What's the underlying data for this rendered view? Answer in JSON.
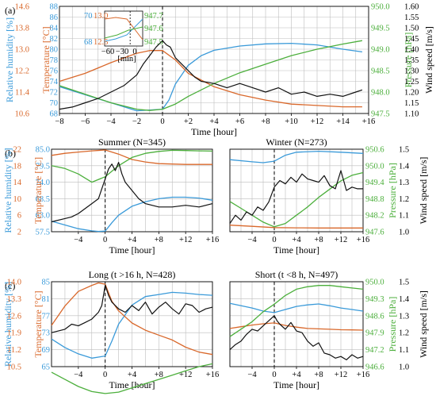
{
  "chart_data": [
    {
      "type": "line",
      "panel_label": "(a)",
      "title": "",
      "xlabel": "Time [hour]",
      "x_ticks": [
        "−8",
        "−6",
        "−4",
        "−2",
        "0",
        "+2",
        "+4",
        "+6",
        "+8",
        "+10",
        "+12",
        "+14",
        "+16"
      ],
      "xlim": [
        -8,
        16
      ],
      "axes": {
        "rh": {
          "label": "Relative humidity [%]",
          "lim": [
            68,
            88
          ],
          "ticks": [
            "68",
            "70",
            "72",
            "74",
            "76",
            "78",
            "80",
            "82",
            "84",
            "86",
            "88"
          ],
          "color": "#3a9ad9"
        },
        "temp": {
          "label": "Temperature [°C]",
          "lim": [
            10.6,
            14.6
          ],
          "ticks": [
            "10.6",
            "11.4",
            "12.2",
            "13.0",
            "13.8",
            "14.6"
          ],
          "color": "#d9682b"
        },
        "pres": {
          "label": "Pressure [hPa]",
          "lim": [
            947.5,
            950
          ],
          "ticks": [
            "947.5",
            "948.0",
            "948.5",
            "949.0",
            "949.5",
            "950.0"
          ],
          "color": "#4caf3c"
        },
        "wind": {
          "label": "Wind speed [m/s]",
          "lim": [
            1.1,
            1.6
          ],
          "ticks": [
            "1.10",
            "1.15",
            "1.20",
            "1.25",
            "1.30",
            "1.35",
            "1.40",
            "1.45",
            "1.50",
            "1.55",
            "1.60"
          ],
          "color": "#000000"
        }
      },
      "series": [
        {
          "axis": "rh",
          "x": [
            -8,
            -6,
            -4,
            -2,
            0,
            0.5,
            1,
            2,
            3,
            4,
            6,
            8,
            10,
            12,
            14,
            15.5
          ],
          "y": [
            73.0,
            71.5,
            70.0,
            68.5,
            68.8,
            70.5,
            73.5,
            77.0,
            78.8,
            79.8,
            80.6,
            81.0,
            81.1,
            80.8,
            80.0,
            79.5
          ]
        },
        {
          "axis": "temp",
          "x": [
            -8,
            -6,
            -4,
            -2,
            -1,
            0,
            1,
            2,
            4,
            6,
            8,
            10,
            12,
            14,
            15.5
          ],
          "y": [
            11.8,
            12.1,
            12.5,
            12.85,
            12.95,
            12.95,
            12.6,
            12.1,
            11.6,
            11.3,
            11.1,
            10.95,
            10.9,
            10.85,
            10.85
          ]
        },
        {
          "axis": "pres",
          "x": [
            -8,
            -6,
            -4,
            -2,
            -1,
            0,
            1,
            2,
            4,
            6,
            8,
            10,
            12,
            14,
            15.5
          ],
          "y": [
            948.15,
            947.95,
            947.75,
            947.6,
            947.57,
            947.6,
            947.72,
            947.9,
            948.2,
            948.45,
            948.65,
            948.85,
            949.0,
            949.12,
            949.2
          ]
        },
        {
          "axis": "wind",
          "x": [
            -8,
            -7,
            -6,
            -5,
            -4,
            -3,
            -2,
            -1.5,
            -1,
            -0.5,
            0,
            0.3,
            0.6,
            1,
            1.5,
            2,
            2.5,
            3,
            4,
            5,
            6,
            7,
            8,
            9,
            10,
            11,
            12,
            13,
            14,
            15,
            15.5
          ],
          "y": [
            1.12,
            1.13,
            1.15,
            1.17,
            1.2,
            1.23,
            1.28,
            1.33,
            1.37,
            1.41,
            1.44,
            1.42,
            1.41,
            1.36,
            1.33,
            1.3,
            1.27,
            1.25,
            1.24,
            1.22,
            1.24,
            1.22,
            1.2,
            1.22,
            1.19,
            1.2,
            1.18,
            1.19,
            1.18,
            1.2,
            1.21
          ]
        }
      ],
      "inset": {
        "x_ticks": [
          "−60",
          "−30",
          "0"
        ],
        "xlabel": "[min]",
        "rh_ticks": [
          "68",
          "70"
        ],
        "temp_ticks": [
          "12.5",
          "13.0"
        ],
        "pres_ticks": [
          "947.5",
          "947.6",
          "947.7"
        ]
      }
    },
    {
      "type": "line",
      "panel_label": "(b)",
      "title": "Summer (N=345)",
      "xlabel": "Time [hour]",
      "x_ticks": [
        "−4",
        "0",
        "+4",
        "+8",
        "+12",
        "+16"
      ],
      "xlim": [
        -8,
        16
      ],
      "axes": {
        "rh": {
          "label": "Relative humidity [%]",
          "lim": [
            57.5,
            85
          ],
          "ticks": [
            "57.5",
            "63.0",
            "68.5",
            "74.0",
            "79.5",
            "85.0"
          ]
        },
        "temp": {
          "label": "Temperature [°C]",
          "lim": [
            2,
            22
          ],
          "ticks": [
            "2",
            "6",
            "10",
            "14",
            "18",
            "22"
          ]
        }
      },
      "series": [
        {
          "axis": "rh",
          "x": [
            -8,
            -4,
            -2,
            -1,
            0,
            1,
            2,
            4,
            6,
            8,
            10,
            12,
            14,
            16
          ],
          "y": [
            61.0,
            58.5,
            57.8,
            57.6,
            57.7,
            60.5,
            63.0,
            66.0,
            67.5,
            68.5,
            69.0,
            69.0,
            68.7,
            68.0
          ]
        },
        {
          "axis": "temp",
          "x": [
            -8,
            -6,
            -4,
            -2,
            0,
            2,
            4,
            6,
            8,
            12,
            16
          ],
          "y": [
            20.5,
            21.0,
            21.3,
            21.6,
            21.8,
            20.8,
            19.5,
            18.9,
            18.5,
            18.3,
            18.3
          ]
        },
        {
          "axis": "pres",
          "x": [
            -8,
            -6,
            -4,
            -2,
            0,
            2,
            4,
            6,
            8,
            10,
            12,
            14,
            16
          ],
          "y": [
            949.9,
            949.8,
            949.6,
            949.3,
            949.5,
            949.9,
            950.2,
            950.35,
            950.42,
            950.46,
            950.45,
            950.44,
            950.43
          ]
        },
        {
          "axis": "wind",
          "x": [
            -8,
            -6,
            -5,
            -4,
            -3,
            -2,
            -1,
            -0.5,
            0,
            0.5,
            1,
            1.5,
            2,
            2.5,
            3,
            4,
            5,
            6,
            8,
            10,
            12,
            14,
            16
          ],
          "y": [
            1.06,
            1.08,
            1.09,
            1.11,
            1.14,
            1.17,
            1.2,
            1.26,
            1.32,
            1.38,
            1.41,
            1.37,
            1.42,
            1.35,
            1.3,
            1.25,
            1.2,
            1.17,
            1.15,
            1.15,
            1.16,
            1.15,
            1.17
          ]
        }
      ]
    },
    {
      "type": "line",
      "panel_label": "",
      "title": "Winter (N=273)",
      "xlabel": "Time [hour]",
      "x_ticks": [
        "−4",
        "0",
        "+4",
        "+8",
        "+12",
        "+16"
      ],
      "xlim": [
        -8,
        16
      ],
      "axes": {
        "pres": {
          "label": "Pressure [hPa]",
          "lim": [
            947.6,
            950.6
          ],
          "ticks": [
            "947.6",
            "948.2",
            "948.8",
            "949.4",
            "950.0",
            "950.6"
          ]
        },
        "wind": {
          "label": "Wind speed [m/s]",
          "lim": [
            1.0,
            1.5
          ],
          "ticks": [
            "1.0",
            "1.1",
            "1.2",
            "1.3",
            "1.4",
            "1.5"
          ]
        }
      },
      "series": [
        {
          "axis": "rh",
          "x": [
            -8,
            -4,
            -2,
            0,
            2,
            4,
            8,
            12,
            16
          ],
          "y": [
            81.5,
            80.8,
            80.5,
            81.0,
            83.0,
            84.0,
            84.3,
            84.0,
            83.6
          ]
        },
        {
          "axis": "temp",
          "x": [
            -8,
            -4,
            0,
            4,
            8,
            12,
            16
          ],
          "y": [
            3.6,
            3.3,
            3.0,
            2.95,
            2.9,
            2.9,
            2.9
          ]
        },
        {
          "axis": "pres",
          "x": [
            -8,
            -6,
            -4,
            -2,
            0,
            2,
            4,
            6,
            8,
            10,
            12,
            14,
            16
          ],
          "y": [
            948.7,
            948.45,
            948.2,
            947.95,
            947.78,
            947.9,
            948.2,
            948.5,
            948.85,
            949.15,
            949.45,
            949.65,
            949.75
          ]
        },
        {
          "axis": "wind",
          "x": [
            -8,
            -7,
            -6,
            -5,
            -4,
            -3,
            -2,
            -1,
            0,
            1,
            2,
            3,
            4,
            5,
            6,
            7,
            8,
            9,
            10,
            11,
            12,
            13,
            14,
            15,
            16
          ],
          "y": [
            1.05,
            1.1,
            1.07,
            1.12,
            1.1,
            1.15,
            1.13,
            1.18,
            1.27,
            1.31,
            1.29,
            1.33,
            1.3,
            1.35,
            1.32,
            1.31,
            1.3,
            1.34,
            1.28,
            1.26,
            1.37,
            1.25,
            1.27,
            1.26,
            1.26
          ]
        }
      ]
    },
    {
      "type": "line",
      "panel_label": "(c)",
      "title": "Long (t >16 h, N=428)",
      "xlabel": "Time [hour]",
      "x_ticks": [
        "−4",
        "0",
        "+4",
        "+8",
        "+12",
        "+16"
      ],
      "xlim": [
        -8,
        16
      ],
      "axes": {
        "rh": {
          "label": "Relative humidity [%]",
          "lim": [
            65,
            85
          ],
          "ticks": [
            "65",
            "69",
            "73",
            "77",
            "81",
            "85"
          ]
        },
        "temp": {
          "label": "Temperature [°C]",
          "lim": [
            10.5,
            14.0
          ],
          "ticks": [
            "10.5",
            "11.2",
            "11.9",
            "12.6",
            "13.3",
            "14.0"
          ]
        }
      },
      "series": [
        {
          "axis": "rh",
          "x": [
            -8,
            -6,
            -4,
            -2,
            0,
            1,
            2,
            4,
            6,
            8,
            10,
            12,
            14,
            16
          ],
          "y": [
            71.5,
            69.5,
            68.0,
            67.0,
            67.5,
            71.0,
            75.0,
            79.5,
            81.5,
            82.0,
            82.5,
            82.3,
            82.0,
            81.8
          ]
        },
        {
          "axis": "temp",
          "x": [
            -8,
            -6,
            -4,
            -2,
            -1,
            0,
            1,
            2,
            4,
            6,
            8,
            10,
            12,
            14,
            16
          ],
          "y": [
            12.2,
            13.0,
            13.6,
            13.85,
            13.95,
            13.9,
            13.2,
            12.8,
            12.3,
            12.0,
            11.8,
            11.6,
            11.3,
            11.1,
            11.0
          ]
        },
        {
          "axis": "pres",
          "x": [
            -8,
            -6,
            -4,
            -2,
            0,
            2,
            4,
            6,
            8,
            10,
            12,
            14,
            16
          ],
          "y": [
            947.3,
            947.05,
            946.8,
            946.62,
            946.55,
            946.6,
            946.75,
            946.9,
            947.05,
            947.2,
            947.35,
            947.5,
            947.6
          ]
        },
        {
          "axis": "wind",
          "x": [
            -8,
            -6,
            -5,
            -4,
            -3,
            -2,
            -1,
            -0.5,
            0,
            0.5,
            1,
            2,
            3,
            4,
            5,
            6,
            7,
            8,
            9,
            10,
            11,
            12,
            13,
            14,
            15,
            16
          ],
          "y": [
            1.2,
            1.22,
            1.25,
            1.24,
            1.26,
            1.28,
            1.32,
            1.36,
            1.48,
            1.42,
            1.38,
            1.34,
            1.32,
            1.36,
            1.33,
            1.38,
            1.31,
            1.35,
            1.38,
            1.34,
            1.31,
            1.37,
            1.36,
            1.32,
            1.34,
            1.35
          ]
        }
      ]
    },
    {
      "type": "line",
      "panel_label": "",
      "title": "Short (t <8 h, N=497)",
      "xlabel": "Time [hour]",
      "x_ticks": [
        "−4",
        "0",
        "+4",
        "+8",
        "+12",
        "+16"
      ],
      "xlim": [
        -8,
        16
      ],
      "axes": {
        "pres": {
          "label": "Pressure [hPa]",
          "lim": [
            946.6,
            950
          ],
          "ticks": [
            "946.6",
            "947.2",
            "947.9",
            "948.6",
            "949.3",
            "950.0"
          ]
        },
        "wind": {
          "label": "Wind speed [m/s]",
          "lim": [
            1.0,
            1.5
          ],
          "ticks": [
            "1.0",
            "1.1",
            "1.2",
            "1.3",
            "1.4",
            "1.5"
          ]
        }
      },
      "series": [
        {
          "axis": "rh",
          "x": [
            -8,
            -4,
            -2,
            0,
            2,
            4,
            6,
            8,
            10,
            12,
            14,
            16
          ],
          "y": [
            78.0,
            76.5,
            75.5,
            75.0,
            76.0,
            77.0,
            77.5,
            77.8,
            77.2,
            76.5,
            76.0,
            75.5
          ]
        },
        {
          "axis": "temp",
          "x": [
            -8,
            -6,
            -4,
            -2,
            0,
            2,
            4,
            6,
            8,
            10,
            12,
            14,
            16
          ],
          "y": [
            11.0,
            11.4,
            11.8,
            12.1,
            12.3,
            11.7,
            11.3,
            11.0,
            10.9,
            10.8,
            10.7,
            10.65,
            10.6
          ]
        },
        {
          "axis": "pres",
          "x": [
            -8,
            -6,
            -4,
            -2,
            0,
            2,
            4,
            6,
            8,
            10,
            12,
            14,
            16
          ],
          "y": [
            947.8,
            948.1,
            948.4,
            948.8,
            949.1,
            949.45,
            949.7,
            949.8,
            949.85,
            949.85,
            949.8,
            949.75,
            949.7
          ]
        },
        {
          "axis": "wind",
          "x": [
            -8,
            -7,
            -6,
            -5,
            -4,
            -3,
            -2,
            -1,
            0,
            0.5,
            1,
            2,
            3,
            4,
            5,
            6,
            7,
            8,
            9,
            10,
            11,
            12,
            13,
            14,
            15,
            16
          ],
          "y": [
            1.1,
            1.13,
            1.15,
            1.19,
            1.22,
            1.21,
            1.24,
            1.27,
            1.3,
            1.27,
            1.25,
            1.22,
            1.26,
            1.21,
            1.2,
            1.15,
            1.12,
            1.14,
            1.08,
            1.07,
            1.05,
            1.06,
            1.04,
            1.07,
            1.05,
            1.06
          ]
        }
      ]
    }
  ]
}
